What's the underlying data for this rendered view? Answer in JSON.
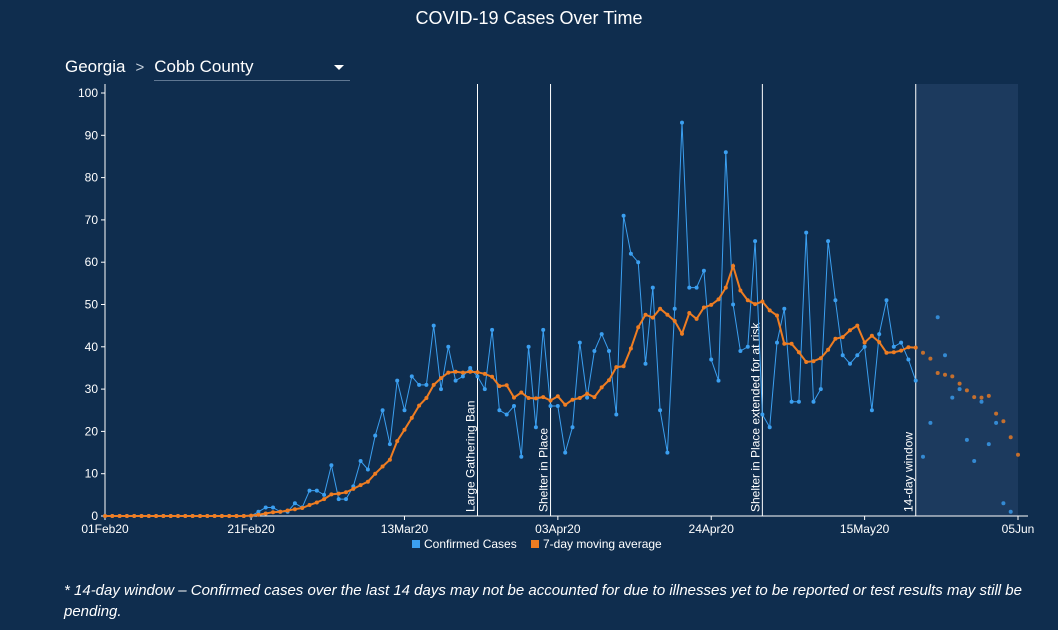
{
  "header": {
    "title": "COVID-19 Cases Over Time"
  },
  "breadcrumb": {
    "state": "Georgia",
    "separator": ">",
    "county": "Cobb County"
  },
  "footnote": "* 14-day window – Confirmed cases over the last 14 days may not be accounted for due to illnesses yet to be reported or test results may still be pending.",
  "colors": {
    "background": "#0f2d4e",
    "window_shade": "#1c3a5e",
    "confirmed": "#3b9ff0",
    "moving_average": "#ef7d22",
    "event_line": "#ffffff"
  },
  "chart_data": {
    "type": "line",
    "title": "COVID-19 Cases Over Time",
    "x_start": "01Feb20",
    "x_end": "05Jun",
    "xlim": [
      0,
      125
    ],
    "ylim": [
      0,
      100
    ],
    "y_ticks": [
      0,
      10,
      20,
      30,
      40,
      50,
      60,
      70,
      80,
      90,
      100
    ],
    "x_ticks": [
      {
        "label": "01Feb20",
        "day": 0
      },
      {
        "label": "21Feb20",
        "day": 20
      },
      {
        "label": "13Mar20",
        "day": 41
      },
      {
        "label": "03Apr20",
        "day": 62
      },
      {
        "label": "24Apr20",
        "day": 83
      },
      {
        "label": "15May20",
        "day": 104
      },
      {
        "label": "05Jun",
        "day": 125
      }
    ],
    "events": [
      {
        "label": "Large Gathering Ban",
        "day": 51
      },
      {
        "label": "Shelter in Place",
        "day": 61
      },
      {
        "label": "Shelter in Place extended for at risk",
        "day": 90
      },
      {
        "label": "14-day window",
        "day": 111
      }
    ],
    "window_start_day": 111,
    "legend": {
      "position": "bottom"
    },
    "series": [
      {
        "name": "Confirmed Cases",
        "values": [
          0,
          0,
          0,
          0,
          0,
          0,
          0,
          0,
          0,
          0,
          0,
          0,
          0,
          0,
          0,
          0,
          0,
          0,
          0,
          0,
          0,
          1,
          2,
          2,
          1,
          1,
          3,
          2,
          6,
          6,
          5,
          12,
          4,
          4,
          7,
          13,
          11,
          19,
          25,
          17,
          32,
          25,
          33,
          31,
          31,
          45,
          30,
          40,
          32,
          33,
          35,
          33,
          30,
          44,
          25,
          24,
          26,
          14,
          40,
          21,
          44,
          26,
          26,
          15,
          21,
          41,
          28,
          39,
          43,
          39,
          24,
          71,
          62,
          60,
          36,
          54,
          25,
          15,
          49,
          93,
          54,
          54,
          58,
          37,
          32,
          86,
          50,
          39,
          40,
          65,
          24,
          21,
          41,
          49,
          27,
          27,
          67,
          27,
          30,
          65,
          51,
          38,
          36,
          38,
          40,
          25,
          43,
          51,
          40,
          41,
          37,
          32,
          14,
          22,
          47,
          38,
          28,
          30,
          18,
          13,
          27,
          17,
          22,
          3,
          1
        ]
      },
      {
        "name": "7-day moving average",
        "values": [
          0,
          0,
          0,
          0,
          0,
          0,
          0,
          0,
          0,
          0,
          0,
          0,
          0,
          0,
          0,
          0,
          0,
          0,
          0,
          0,
          0.1,
          0.3,
          0.6,
          0.9,
          1.0,
          1.3,
          1.6,
          1.9,
          2.6,
          3.2,
          4.0,
          5.1,
          5.3,
          5.6,
          6.4,
          7.3,
          8.1,
          10.0,
          11.7,
          13.3,
          17.7,
          20.4,
          23.2,
          26.1,
          27.9,
          31.0,
          32.6,
          33.9,
          34.1,
          33.9,
          34.1,
          34.0,
          33.6,
          32.9,
          30.7,
          30.9,
          28.0,
          29.2,
          27.9,
          27.8,
          28.1,
          27.3,
          28.3,
          26.3,
          27.5,
          27.9,
          28.9,
          28.1,
          30.4,
          32.1,
          35.2,
          35.4,
          39.6,
          44.6,
          47.6,
          46.9,
          49.0,
          47.6,
          46.1,
          43.1,
          48.0,
          46.6,
          49.3,
          49.9,
          51.2,
          54.0,
          59.1,
          53.3,
          51.0,
          50.1,
          50.7,
          48.6,
          47.4,
          40.7,
          40.7,
          38.7,
          36.4,
          36.6,
          37.3,
          39.3,
          41.9,
          42.3,
          43.9,
          45.0,
          41.0,
          42.6,
          41.1,
          38.6,
          38.7,
          39.1,
          39.9,
          39.8,
          38.6,
          37.2,
          33.8,
          33.4,
          33.0,
          31.3,
          29.7,
          28.1,
          28.0,
          28.4,
          24.2,
          22.4,
          18.6,
          14.5
        ]
      }
    ]
  }
}
